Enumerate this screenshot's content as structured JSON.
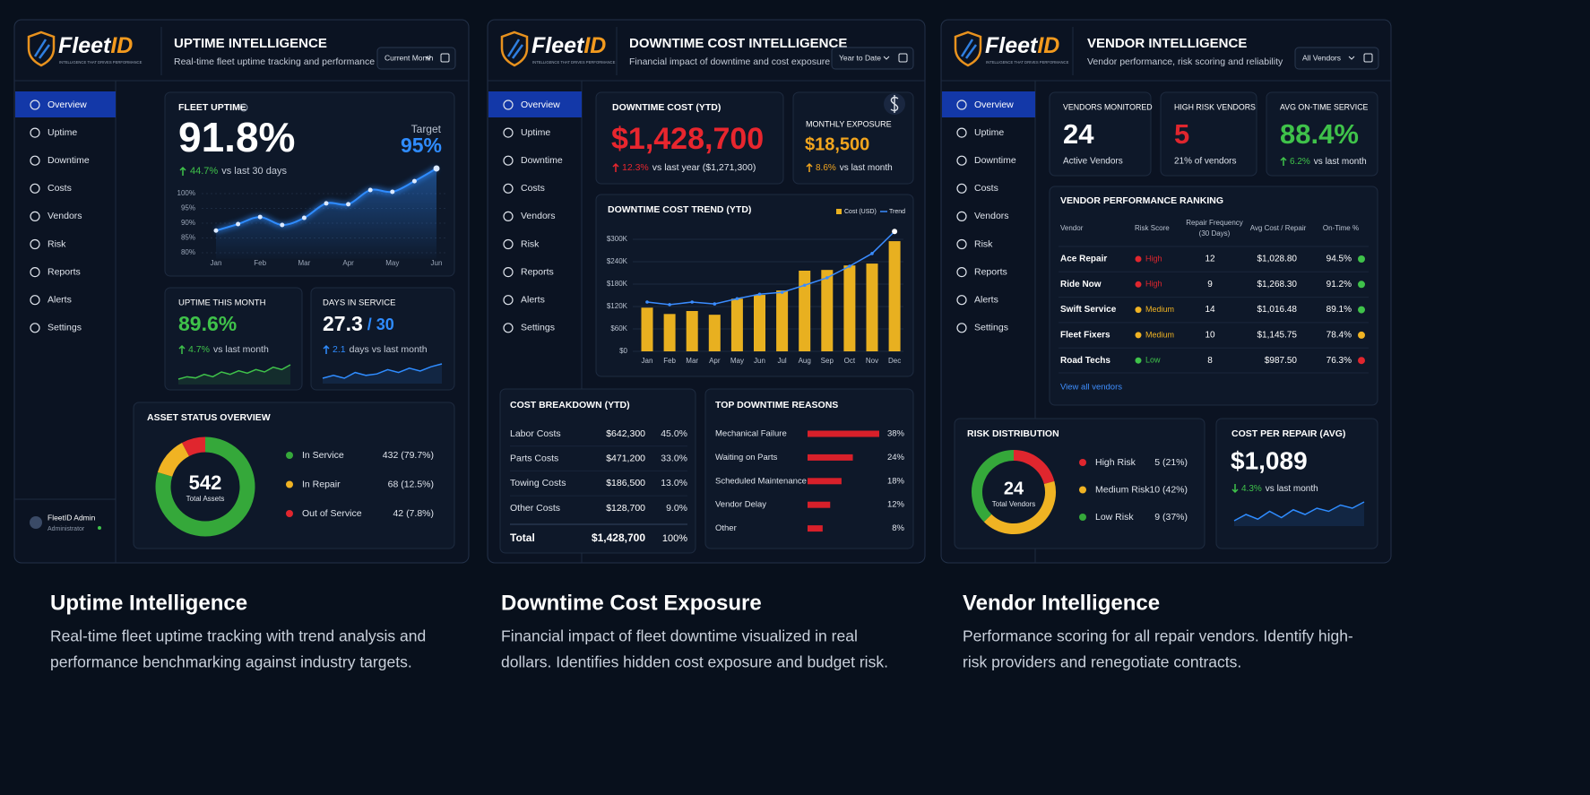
{
  "brand": {
    "name": "Fleet",
    "name_accent": "ID",
    "tagline": "INTELLIGENCE THAT DRIVES PERFORMANCE"
  },
  "nav": [
    "Overview",
    "Uptime",
    "Downtime",
    "Costs",
    "Vendors",
    "Risk",
    "Reports",
    "Alerts",
    "Settings"
  ],
  "user": {
    "name": "FleetID Admin",
    "role": "Administrator"
  },
  "panels": [
    {
      "title": "UPTIME INTELLIGENCE",
      "subtitle": "Real-time fleet uptime tracking and performance",
      "filter": "Current Month",
      "fleet_uptime": {
        "label": "FLEET UPTIME",
        "value": "91.8%",
        "target_label": "Target",
        "target": "95%",
        "change": "44.7%",
        "change_note": "vs last 30 days",
        "chart": {
          "type": "line",
          "categories": [
            "Jan",
            null,
            "Feb",
            null,
            "Mar",
            null,
            "Apr",
            null,
            "May",
            null,
            "Jun"
          ],
          "values": [
            87.5,
            89.7,
            92.1,
            89.4,
            91.8,
            96.7,
            96.4,
            101.2,
            100.6,
            104.2,
            108.5
          ],
          "color": "#2f8cff",
          "ylim": [
            78,
            110
          ],
          "yticks": [
            {
              "value": 80,
              "label": "80%"
            },
            {
              "value": 85,
              "label": "85%"
            },
            {
              "value": 90,
              "label": "90%"
            },
            {
              "value": 95,
              "label": "95%"
            },
            {
              "value": 100,
              "label": "100%"
            }
          ],
          "grid": true
        }
      },
      "uptime_month": {
        "label": "UPTIME THIS MONTH",
        "value": "89.6%",
        "change": "4.7%",
        "change_note": "vs last month",
        "color": "#3fc24a",
        "sparkline": {
          "type": "line",
          "values": [
            2,
            3,
            2.5,
            4,
            3,
            5,
            4,
            5.5,
            4.5,
            6,
            5,
            7,
            6,
            8
          ]
        }
      },
      "days_in_service": {
        "label": "DAYS IN SERVICE",
        "value": "27.3",
        "total": "/ 30",
        "change": "2.1",
        "change_note": "days vs last month",
        "color": "#2f8cff",
        "sparkline": {
          "type": "line",
          "values": [
            3,
            4,
            3,
            5,
            4,
            4.5,
            6,
            5,
            6.5,
            5.5,
            7,
            8
          ]
        }
      },
      "asset_status": {
        "type": "donut",
        "title": "ASSET STATUS OVERVIEW",
        "total": "542",
        "total_label": "Total Assets",
        "categories": [
          "In Service",
          "In Repair",
          "Out of Service"
        ],
        "values": [
          432,
          68,
          42
        ],
        "value_labels": [
          "432 (79.7%)",
          "68 (12.5%)",
          "42 (7.8%)"
        ],
        "colors": [
          "#35a83a",
          "#f0b323",
          "#e0262e"
        ]
      }
    },
    {
      "title": "DOWNTIME COST INTELLIGENCE",
      "subtitle": "Financial impact of downtime and cost exposure",
      "filter": "Year to Date",
      "downtime_cost": {
        "label": "DOWNTIME COST (YTD)",
        "value": "$1,428,700",
        "change": "12.3%",
        "change_note": "vs last year ($1,271,300)",
        "color": "#e8262e"
      },
      "monthly_exposure": {
        "label": "MONTHLY EXPOSURE",
        "value": "$18,500",
        "change": "8.6%",
        "change_note": "vs last month",
        "color": "#f2a51e"
      },
      "trend": {
        "type": "bar",
        "title": "DOWNTIME COST TREND (YTD)",
        "categories": [
          "Jan",
          "Feb",
          "Mar",
          "Apr",
          "May",
          "Jun",
          "Jul",
          "Aug",
          "Sep",
          "Oct",
          "Nov",
          "Dec"
        ],
        "series": [
          {
            "name": "Cost (USD)",
            "color": "#e8b020",
            "values": [
              117000,
              100000,
              108000,
              98000,
              141000,
              151000,
              163000,
              216000,
              218000,
              230000,
              235000,
              295000
            ]
          },
          {
            "name": "Trend",
            "type": "line",
            "color": "#3a8cff",
            "values": [
              132000,
              125000,
              132000,
              127000,
              141000,
              153000,
              158000,
              177000,
              197000,
              228000,
              262000,
              321000
            ]
          }
        ],
        "ylim": [
          0,
          330000
        ],
        "yticks": [
          {
            "value": 0,
            "label": "$0"
          },
          {
            "value": 60000,
            "label": "$60K"
          },
          {
            "value": 120000,
            "label": "$120K"
          },
          {
            "value": 180000,
            "label": "$180K"
          },
          {
            "value": 240000,
            "label": "$240K"
          },
          {
            "value": 300000,
            "label": "$300K"
          }
        ]
      },
      "breakdown": {
        "title": "COST BREAKDOWN (YTD)",
        "rows": [
          [
            "Labor Costs",
            "$642,300",
            "45.0%"
          ],
          [
            "Parts Costs",
            "$471,200",
            "33.0%"
          ],
          [
            "Towing Costs",
            "$186,500",
            "13.0%"
          ],
          [
            "Other Costs",
            "$128,700",
            "9.0%"
          ]
        ],
        "total": [
          "Total",
          "$1,428,700",
          "100%"
        ]
      },
      "reasons": {
        "type": "hbar",
        "title": "TOP DOWNTIME REASONS",
        "categories": [
          "Mechanical Failure",
          "Waiting on Parts",
          "Scheduled Maintenance",
          "Vendor Delay",
          "Other"
        ],
        "values": [
          38,
          24,
          18,
          12,
          8
        ],
        "value_labels": [
          "38%",
          "24%",
          "18%",
          "12%",
          "8%"
        ],
        "color": "#d8202a"
      }
    },
    {
      "title": "VENDOR INTELLIGENCE",
      "subtitle": "Vendor performance, risk scoring and reliability",
      "filter": "All Vendors",
      "kpis": [
        {
          "label": "VENDORS MONITORED",
          "value": "24",
          "note": "Active Vendors",
          "color": "#ffffff"
        },
        {
          "label": "HIGH RISK VENDORS",
          "value": "5",
          "note": "21% of vendors",
          "color": "#e0262e"
        },
        {
          "label": "AVG ON-TIME SERVICE",
          "value": "88.4%",
          "change": "6.2%",
          "note": "vs last month",
          "color": "#3fc24a"
        }
      ],
      "ranking": {
        "title": "VENDOR PERFORMANCE RANKING",
        "columns": [
          "Vendor",
          "Risk Score",
          [
            "Repair Frequency",
            "(30 Days)"
          ],
          "Avg Cost / Repair",
          "On-Time %"
        ],
        "rows": [
          [
            "Ace Repair",
            "High",
            "12",
            "$1,028.80",
            "94.5%"
          ],
          [
            "Ride Now",
            "High",
            "9",
            "$1,268.30",
            "91.2%"
          ],
          [
            "Swift Service",
            "Medium",
            "14",
            "$1,016.48",
            "89.1%"
          ],
          [
            "Fleet Fixers",
            "Medium",
            "10",
            "$1,145.75",
            "78.4%"
          ],
          [
            "Road Techs",
            "Low",
            "8",
            "$987.50",
            "76.3%"
          ]
        ],
        "risk_colors": {
          "High": "#e0262e",
          "Medium": "#f0b323",
          "Low": "#3fc24a"
        },
        "status_colors": [
          "#3fc24a",
          "#3fc24a",
          "#3fc24a",
          "#f0b323",
          "#e0262e"
        ],
        "link": "View all vendors"
      },
      "risk": {
        "type": "donut",
        "title": "RISK DISTRIBUTION",
        "total": "24",
        "total_label": "Total Vendors",
        "categories": [
          "High Risk",
          "Medium Risk",
          "Low Risk"
        ],
        "values": [
          5,
          10,
          9
        ],
        "value_labels": [
          "5 (21%)",
          "10 (42%)",
          "9 (37%)"
        ],
        "colors": [
          "#e0262e",
          "#f0b323",
          "#35a83a"
        ]
      },
      "cost_per_repair": {
        "label": "COST PER REPAIR (AVG)",
        "value": "$1,089",
        "change": "4.3%",
        "change_note": "vs last month",
        "color": "#2f8cff",
        "sparkline": {
          "type": "line",
          "values": [
            3,
            5,
            3.5,
            6,
            4,
            6.5,
            5,
            7,
            6,
            8,
            7,
            9
          ]
        }
      }
    }
  ],
  "captions": [
    {
      "title": "Uptime Intelligence",
      "lines": [
        "Real-time fleet uptime tracking with trend analysis and",
        "performance benchmarking against industry targets."
      ]
    },
    {
      "title": "Downtime Cost Exposure",
      "lines": [
        "Financial impact of fleet downtime visualized in real",
        "dollars. Identifies hidden cost exposure and budget risk."
      ]
    },
    {
      "title": "Vendor Intelligence",
      "lines": [
        "Performance scoring for all repair vendors. Identify high-",
        "risk providers and renegotiate contracts."
      ]
    }
  ]
}
